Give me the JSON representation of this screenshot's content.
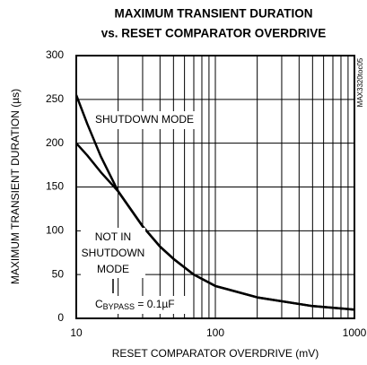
{
  "chart_data": {
    "type": "line",
    "title": [
      "MAXIMUM TRANSIENT DURATION",
      "vs. RESET COMPARATOR OVERDRIVE"
    ],
    "xlabel": "RESET COMPARATOR OVERDRIVE (mV)",
    "ylabel": "MAXIMUM TRANSIENT DURATION (µs)",
    "side_label": "MAX3320toc05",
    "xscale": "log",
    "xlim": [
      10,
      1000
    ],
    "xticks": [
      10,
      100,
      1000
    ],
    "x_minor_grid": [
      20,
      30,
      40,
      50,
      60,
      70,
      80,
      90,
      200,
      300,
      400,
      500,
      600,
      700,
      800,
      900
    ],
    "ylim": [
      0,
      300
    ],
    "yticks": [
      0,
      50,
      100,
      150,
      200,
      250,
      300
    ],
    "grid": true,
    "x": [
      10,
      12,
      15,
      20,
      30,
      40,
      50,
      70,
      100,
      200,
      500,
      1000
    ],
    "series": [
      {
        "name": "SHUTDOWN MODE",
        "color": "#000000",
        "values": [
          255,
          222,
          185,
          145,
          105,
          82,
          68,
          50,
          37,
          24,
          14,
          10
        ]
      },
      {
        "name": "NOT IN SHUTDOWN MODE",
        "color": "#000000",
        "values": [
          200,
          186,
          167,
          145,
          105,
          82,
          68,
          50,
          37,
          24,
          14,
          10
        ]
      }
    ],
    "annotations": [
      {
        "lines": [
          "SHUTDOWN MODE"
        ]
      },
      {
        "lines": [
          "NOT IN",
          "SHUTDOWN",
          "MODE"
        ]
      },
      {
        "parts": [
          "C",
          "BYPASS",
          " = 0.1µF"
        ]
      }
    ]
  }
}
